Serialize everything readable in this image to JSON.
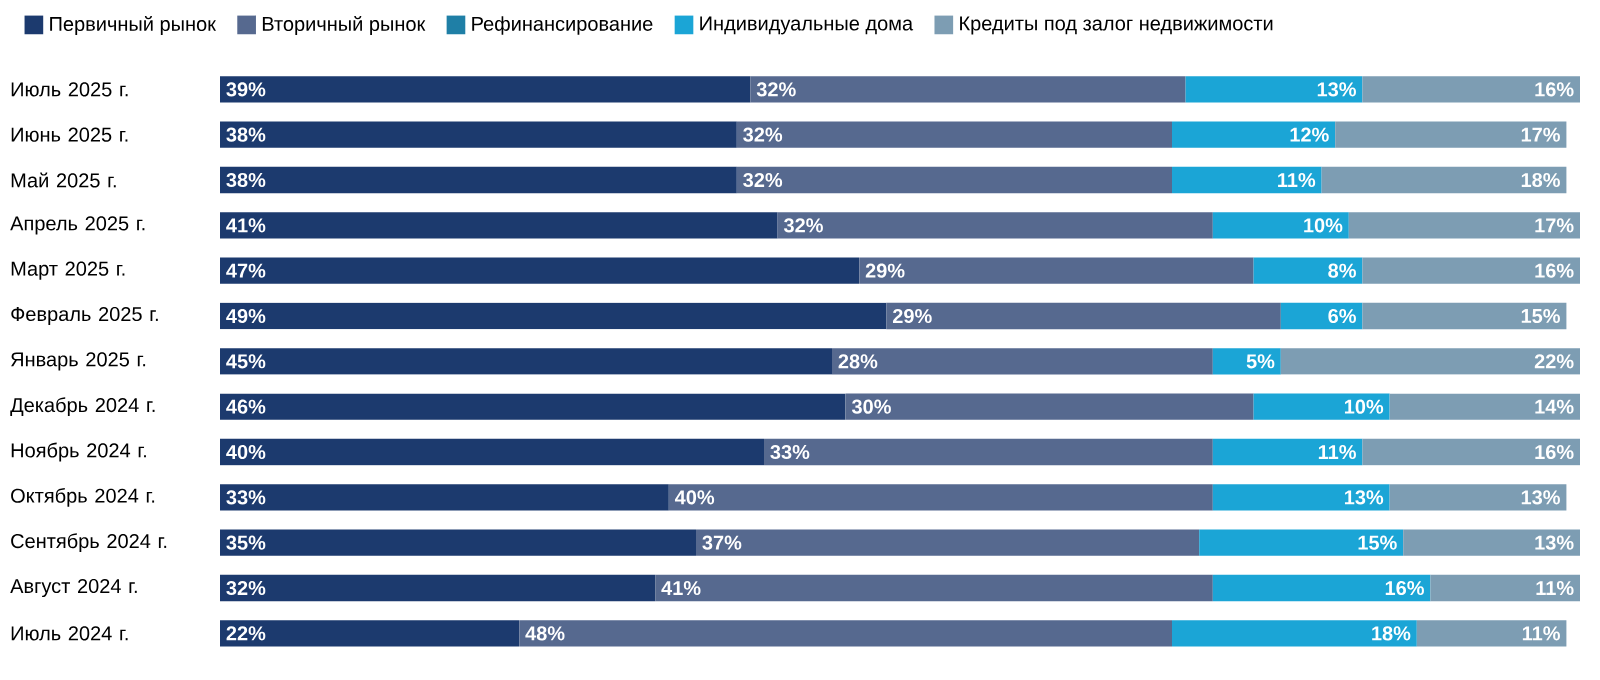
{
  "chart_data": {
    "type": "bar",
    "orientation": "horizontal",
    "stacked": true,
    "legend": "top left",
    "tick_labels": "y",
    "xlim": [
      0,
      100
    ],
    "categories": [
      "Июль 2025 г.",
      "Июнь 2025 г.",
      "Май 2025 г.",
      "Апрель 2025 г.",
      "Март 2025 г.",
      "Февраль 2025 г.",
      "Январь 2025 г.",
      "Декабрь 2024 г.",
      "Ноябрь 2024 г.",
      "Октябрь 2024 г.",
      "Сентябрь 2024 г.",
      "Август 2024 г.",
      "Июль 2024 г."
    ],
    "series": [
      {
        "name": "Первичный рынок",
        "color": "#1c3a6e",
        "values": [
          39,
          38,
          38,
          41,
          47,
          49,
          45,
          46,
          40,
          33,
          35,
          32,
          22
        ],
        "value_labels": [
          "39%",
          "38%",
          "38%",
          "41%",
          "47%",
          "49%",
          "45%",
          "46%",
          "40%",
          "33%",
          "35%",
          "32%",
          "22%"
        ]
      },
      {
        "name": "Вторичный рынок",
        "color": "#56698f",
        "values": [
          32,
          32,
          32,
          32,
          29,
          29,
          28,
          30,
          33,
          40,
          37,
          41,
          48
        ],
        "value_labels": [
          "32%",
          "32%",
          "32%",
          "32%",
          "29%",
          "29%",
          "28%",
          "30%",
          "33%",
          "40%",
          "37%",
          "41%",
          "48%"
        ]
      },
      {
        "name": "Рефинансирование",
        "color": "#1f7fa6",
        "values": [
          null,
          null,
          null,
          null,
          null,
          null,
          null,
          null,
          null,
          null,
          null,
          null,
          null
        ]
      },
      {
        "name": "Индивидуальные дома",
        "color": "#1ba5d6",
        "values": [
          13,
          12,
          11,
          10,
          8,
          6,
          5,
          10,
          11,
          13,
          15,
          16,
          18
        ],
        "value_labels": [
          "13%",
          "12%",
          "11%",
          "10%",
          "8%",
          "6%",
          "5%",
          "10%",
          "11%",
          "13%",
          "15%",
          "16%",
          "18%"
        ]
      },
      {
        "name": "Кредиты под залог недвижимости",
        "color": "#7d9db3",
        "values": [
          16,
          17,
          18,
          17,
          16,
          15,
          22,
          14,
          16,
          13,
          13,
          11,
          11
        ],
        "value_labels": [
          "16%",
          "17%",
          "18%",
          "17%",
          "16%",
          "15%",
          "22%",
          "14%",
          "16%",
          "13%",
          "13%",
          "11%",
          "11%"
        ]
      }
    ]
  }
}
